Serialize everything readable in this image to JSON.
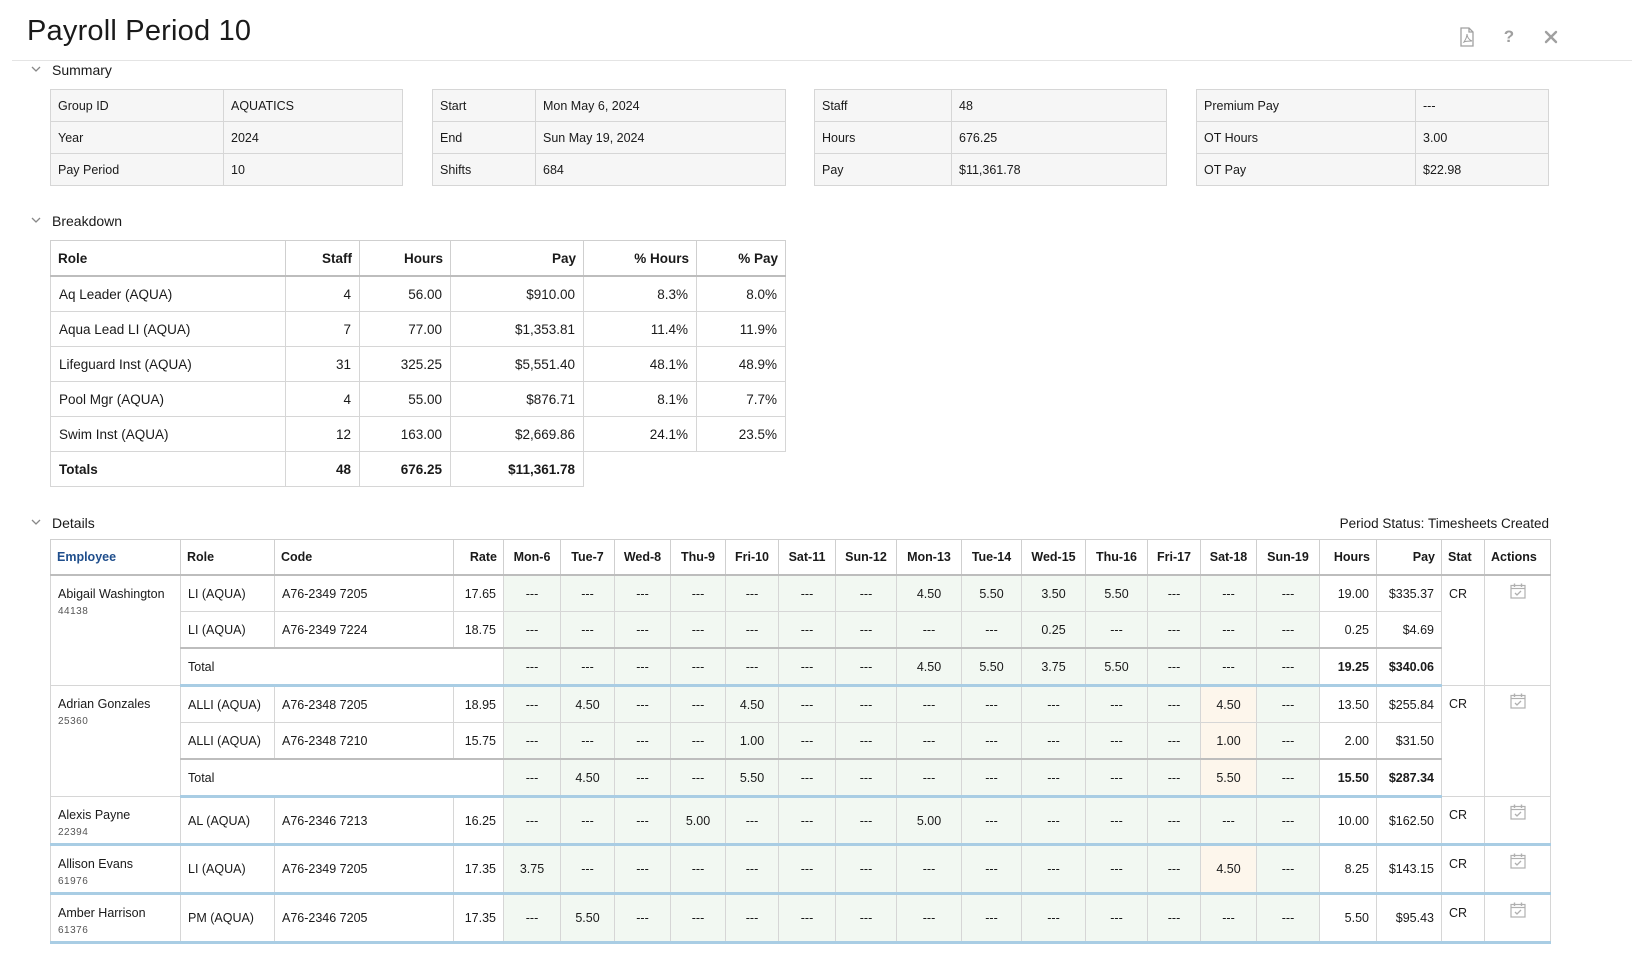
{
  "page": {
    "title": "Payroll Period 10"
  },
  "toolbar": {
    "icons": [
      "pdf-icon",
      "help-icon",
      "close-icon"
    ]
  },
  "summary": {
    "heading": "Summary",
    "boxes": [
      {
        "rows": [
          {
            "label": "Group ID",
            "value": "AQUATICS"
          },
          {
            "label": "Year",
            "value": "2024"
          },
          {
            "label": "Pay Period",
            "value": "10"
          }
        ]
      },
      {
        "rows": [
          {
            "label": "Start",
            "value": "Mon May 6, 2024"
          },
          {
            "label": "End",
            "value": "Sun May 19, 2024"
          },
          {
            "label": "Shifts",
            "value": "684"
          }
        ]
      },
      {
        "rows": [
          {
            "label": "Staff",
            "value": "48"
          },
          {
            "label": "Hours",
            "value": "676.25"
          },
          {
            "label": "Pay",
            "value": "$11,361.78"
          }
        ]
      },
      {
        "rows": [
          {
            "label": "Premium Pay",
            "value": "---"
          },
          {
            "label": "OT Hours",
            "value": "3.00"
          },
          {
            "label": "OT Pay",
            "value": "$22.98"
          }
        ]
      }
    ]
  },
  "breakdown": {
    "heading": "Breakdown",
    "columns": [
      "Role",
      "Staff",
      "Hours",
      "Pay",
      "% Hours",
      "% Pay"
    ],
    "rows": [
      [
        "Aq Leader (AQUA)",
        "4",
        "56.00",
        "$910.00",
        "8.3%",
        "8.0%"
      ],
      [
        "Aqua Lead LI (AQUA)",
        "7",
        "77.00",
        "$1,353.81",
        "11.4%",
        "11.9%"
      ],
      [
        "Lifeguard Inst (AQUA)",
        "31",
        "325.25",
        "$5,551.40",
        "48.1%",
        "48.9%"
      ],
      [
        "Pool Mgr (AQUA)",
        "4",
        "55.00",
        "$876.71",
        "8.1%",
        "7.7%"
      ],
      [
        "Swim Inst (AQUA)",
        "12",
        "163.00",
        "$2,669.86",
        "24.1%",
        "23.5%"
      ]
    ],
    "totals": [
      "Totals",
      "48",
      "676.25",
      "$11,361.78"
    ]
  },
  "details": {
    "heading": "Details",
    "period_status": "Period Status: Timesheets Created",
    "columns": [
      "Employee",
      "Role",
      "Code",
      "Rate",
      "Mon-6",
      "Tue-7",
      "Wed-8",
      "Thu-9",
      "Fri-10",
      "Sat-11",
      "Sun-12",
      "Mon-13",
      "Tue-14",
      "Wed-15",
      "Thu-16",
      "Fri-17",
      "Sat-18",
      "Sun-19",
      "Hours",
      "Pay",
      "Stat",
      "Actions"
    ],
    "total_label": "Total",
    "employees": [
      {
        "name": "Abigail Washington",
        "id": "44138",
        "stat": "CR",
        "rows": [
          {
            "role": "LI (AQUA)",
            "code": "A76-2349 7205",
            "rate": "17.65",
            "days": [
              "---",
              "---",
              "---",
              "---",
              "---",
              "---",
              "---",
              "4.50",
              "5.50",
              "3.50",
              "5.50",
              "---",
              "---",
              "---"
            ],
            "hours": "19.00",
            "pay": "$335.37"
          },
          {
            "role": "LI (AQUA)",
            "code": "A76-2349 7224",
            "rate": "18.75",
            "days": [
              "---",
              "---",
              "---",
              "---",
              "---",
              "---",
              "---",
              "---",
              "---",
              "0.25",
              "---",
              "---",
              "---",
              "---"
            ],
            "hours": "0.25",
            "pay": "$4.69"
          }
        ],
        "total": {
          "days": [
            "---",
            "---",
            "---",
            "---",
            "---",
            "---",
            "---",
            "4.50",
            "5.50",
            "3.75",
            "5.50",
            "---",
            "---",
            "---"
          ],
          "hours": "19.25",
          "pay": "$340.06"
        }
      },
      {
        "name": "Adrian Gonzales",
        "id": "25360",
        "stat": "CR",
        "rows": [
          {
            "role": "ALLI (AQUA)",
            "code": "A76-2348 7205",
            "rate": "18.95",
            "days": [
              "---",
              "4.50",
              "---",
              "---",
              "4.50",
              "---",
              "---",
              "---",
              "---",
              "---",
              "---",
              "---",
              "4.50",
              "---"
            ],
            "hours": "13.50",
            "pay": "$255.84"
          },
          {
            "role": "ALLI (AQUA)",
            "code": "A76-2348 7210",
            "rate": "15.75",
            "days": [
              "---",
              "---",
              "---",
              "---",
              "1.00",
              "---",
              "---",
              "---",
              "---",
              "---",
              "---",
              "---",
              "1.00",
              "---"
            ],
            "hours": "2.00",
            "pay": "$31.50"
          }
        ],
        "total": {
          "days": [
            "---",
            "4.50",
            "---",
            "---",
            "5.50",
            "---",
            "---",
            "---",
            "---",
            "---",
            "---",
            "---",
            "5.50",
            "---"
          ],
          "hours": "15.50",
          "pay": "$287.34"
        }
      },
      {
        "name": "Alexis Payne",
        "id": "22394",
        "stat": "CR",
        "rows": [
          {
            "role": "AL (AQUA)",
            "code": "A76-2346 7213",
            "rate": "16.25",
            "days": [
              "---",
              "---",
              "---",
              "5.00",
              "---",
              "---",
              "---",
              "5.00",
              "---",
              "---",
              "---",
              "---",
              "---",
              "---"
            ],
            "hours": "10.00",
            "pay": "$162.50"
          }
        ]
      },
      {
        "name": "Allison Evans",
        "id": "61976",
        "stat": "CR",
        "rows": [
          {
            "role": "LI (AQUA)",
            "code": "A76-2349 7205",
            "rate": "17.35",
            "days": [
              "3.75",
              "---",
              "---",
              "---",
              "---",
              "---",
              "---",
              "---",
              "---",
              "---",
              "---",
              "---",
              "4.50",
              "---"
            ],
            "hours": "8.25",
            "pay": "$143.15"
          }
        ]
      },
      {
        "name": "Amber Harrison",
        "id": "61376",
        "stat": "CR",
        "rows": [
          {
            "role": "PM (AQUA)",
            "code": "A76-2346 7205",
            "rate": "17.35",
            "days": [
              "---",
              "5.50",
              "---",
              "---",
              "---",
              "---",
              "---",
              "---",
              "---",
              "---",
              "---",
              "---",
              "---",
              "---"
            ],
            "hours": "5.50",
            "pay": "$95.43"
          }
        ]
      }
    ]
  }
}
